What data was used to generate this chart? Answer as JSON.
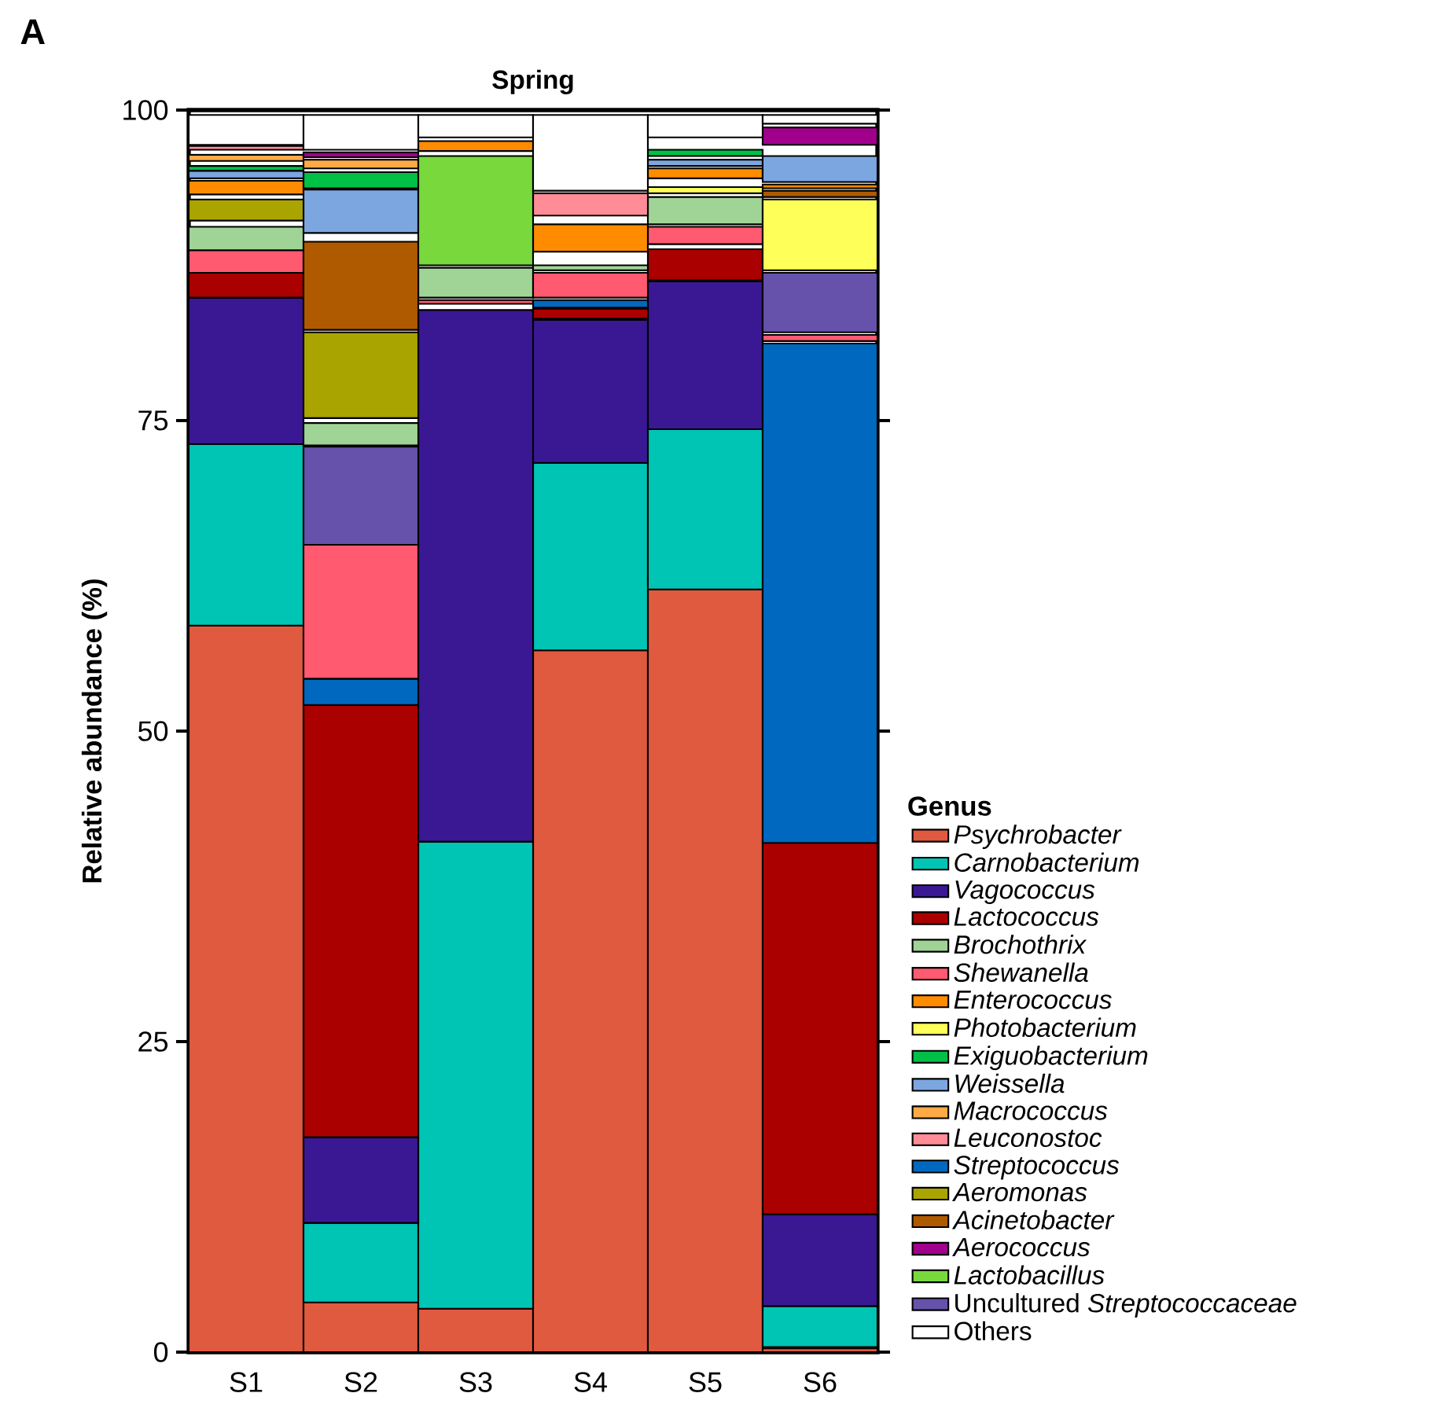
{
  "chart_data": {
    "type": "bar",
    "title": "Spring",
    "ylabel": "Relative abundance (%)",
    "legend_title": "Genus",
    "annotations": [
      "A"
    ],
    "categories": [
      "S1",
      "S2",
      "S3",
      "S4",
      "S5",
      "S6"
    ],
    "ylim": [
      0,
      100
    ],
    "yticks": [
      0,
      25,
      50,
      75,
      100
    ],
    "grid": false,
    "legend": "right",
    "series": [
      {
        "name": "*Psychrobacter*",
        "color": "#e05a40",
        "base": [
          0,
          0,
          0,
          0,
          0,
          0
        ],
        "values": [
          58.5,
          4.0,
          3.5,
          56.5,
          61.4,
          0.3
        ]
      },
      {
        "name": "*Carnobacterium*",
        "color": "#00c4b4",
        "base": [
          58.5,
          4.0,
          3.5,
          56.5,
          61.4,
          0.4
        ],
        "values": [
          14.6,
          6.4,
          37.6,
          15.1,
          12.9,
          3.3
        ]
      },
      {
        "name": "*Vagococcus*",
        "color": "#3a1894",
        "base": [
          73.1,
          10.4,
          41.1,
          71.6,
          74.3,
          3.7
        ],
        "values": [
          11.8,
          6.9,
          42.8,
          11.5,
          11.9,
          7.4
        ]
      },
      {
        "name": "*Lactococcus*",
        "color": "#aa0000",
        "base": [
          84.9,
          17.3,
          null,
          83.2,
          86.3,
          11.1
        ],
        "values": [
          2.0,
          34.8,
          null,
          0.8,
          2.5,
          29.9
        ]
      },
      {
        "name": "*Brochothrix*",
        "color": "#a0d496",
        "base": [
          88.7,
          73.0,
          84.9,
          87.1,
          90.8,
          null
        ],
        "values": [
          1.9,
          1.8,
          2.4,
          0.4,
          2.2,
          null
        ]
      },
      {
        "name": "*Shewanella*",
        "color": "#ff5a70",
        "base": [
          86.9,
          54.2,
          84.4,
          84.9,
          89.2,
          81.4
        ],
        "values": [
          1.8,
          10.8,
          0.3,
          2.0,
          1.4,
          0.5
        ]
      },
      {
        "name": "*Enterococcus*",
        "color": "#ff8c00",
        "base": [
          93.2,
          null,
          96.7,
          88.6,
          94.5,
          93.7
        ],
        "values": [
          1.1,
          null,
          0.8,
          2.2,
          0.8,
          0.3
        ]
      },
      {
        "name": "*Photobacterium*",
        "color": "#ffff5a",
        "base": [
          null,
          null,
          null,
          null,
          93.3,
          87.1
        ],
        "values": [
          null,
          null,
          null,
          null,
          0.5,
          5.7
        ]
      },
      {
        "name": "*Exiguobacterium*",
        "color": "#00c046",
        "base": [
          95.1,
          93.7,
          null,
          null,
          96.3,
          null
        ],
        "values": [
          0.4,
          1.3,
          null,
          null,
          0.5,
          null
        ]
      },
      {
        "name": "*Weissella*",
        "color": "#7ca6e0",
        "base": [
          94.5,
          90.1,
          null,
          null,
          95.5,
          94.2
        ],
        "values": [
          0.6,
          3.5,
          null,
          null,
          0.5,
          2.1
        ]
      },
      {
        "name": "*Macrococcus*",
        "color": "#ffaa46",
        "base": [
          95.9,
          95.3,
          null,
          null,
          null,
          null
        ],
        "values": [
          0.5,
          0.7,
          null,
          null,
          null,
          null
        ]
      },
      {
        "name": "*Leuconostoc*",
        "color": "#ff8c96",
        "base": [
          96.8,
          null,
          null,
          91.5,
          null,
          null
        ],
        "values": [
          0.3,
          null,
          null,
          1.8,
          null,
          null
        ]
      },
      {
        "name": "*Streptococcus*",
        "color": "#0068be",
        "base": [
          null,
          52.1,
          null,
          84.1,
          null,
          41.0
        ],
        "values": [
          null,
          2.1,
          null,
          0.6,
          null,
          40.2
        ]
      },
      {
        "name": "*Aeromonas*",
        "color": "#aaa400",
        "base": [
          91.1,
          75.2,
          null,
          null,
          null,
          null
        ],
        "values": [
          1.7,
          6.9,
          null,
          null,
          null,
          null
        ]
      },
      {
        "name": "*Acinetobacter*",
        "color": "#b05a00",
        "base": [
          null,
          82.3,
          null,
          null,
          null,
          93.0
        ],
        "values": [
          null,
          7.1,
          null,
          null,
          null,
          0.5
        ]
      },
      {
        "name": "*Aerococcus*",
        "color": "#a0008c",
        "base": [
          null,
          96.2,
          null,
          null,
          null,
          97.2
        ],
        "values": [
          null,
          0.4,
          null,
          null,
          null,
          1.4
        ]
      },
      {
        "name": "*Lactobacillus*",
        "color": "#78d83c",
        "base": [
          null,
          null,
          87.5,
          null,
          null,
          null
        ],
        "values": [
          null,
          null,
          8.8,
          null,
          null,
          null
        ]
      },
      {
        "name": "Uncultured *Streptococcaceae*",
        "color": "#6652aa",
        "base": [
          null,
          65.0,
          null,
          null,
          null,
          82.1
        ],
        "values": [
          null,
          7.9,
          null,
          null,
          null,
          4.8
        ]
      },
      {
        "name": "Others",
        "color": "#ffffff",
        "base": [
          97.2,
          96.8,
          97.8,
          93.5,
          97.8,
          98.9
        ],
        "values": [
          2.4,
          2.8,
          1.8,
          6.1,
          1.8,
          0.7
        ]
      }
    ]
  }
}
